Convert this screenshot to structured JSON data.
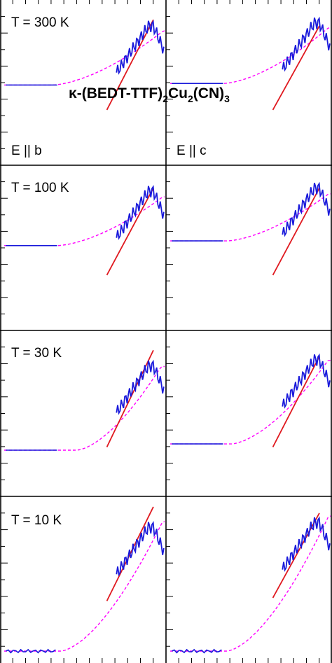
{
  "title": {
    "prefix": "κ-(BEDT-TTF)",
    "sub1": "2",
    "mid": "Cu",
    "sub2": "2",
    "suffix": "(CN)",
    "sub3": "3"
  },
  "columns": [
    {
      "label": "E || b"
    },
    {
      "label": "E || c"
    }
  ],
  "rows": [
    {
      "temperature_label": "T = 300 K"
    },
    {
      "temperature_label": "T = 100 K"
    },
    {
      "temperature_label": "T = 30 K"
    },
    {
      "temperature_label": "T = 10 K"
    }
  ],
  "colors": {
    "frame": "#000000",
    "measured": "#1a1adb",
    "fit_dashed": "#ff00ff",
    "linear_fit": "#e0191f"
  },
  "chart_data": {
    "type": "line",
    "layout": "4x2 panel grid (rows: temperature, columns: polarization)",
    "x": {
      "tick_labels_shown": false,
      "range": [
        0,
        1
      ]
    },
    "y": {
      "tick_labels_shown": false,
      "range": [
        0,
        1
      ]
    },
    "grid": false,
    "series": [
      {
        "name": "",
        "style": "solid blue",
        "description": "measured spectrum"
      },
      {
        "name": "",
        "style": "dashed magenta",
        "description": "model fit"
      },
      {
        "name": "",
        "style": "solid red",
        "description": "linear fit"
      }
    ],
    "panels": [
      {
        "row": 0,
        "col": 0,
        "flat": 0.48,
        "knee": 0.3,
        "end": 0.78,
        "red": [
          [
            0.64,
            0.16
          ],
          [
            0.93,
            0.9
          ]
        ]
      },
      {
        "row": 0,
        "col": 1,
        "flat": 0.49,
        "knee": 0.33,
        "end": 0.8,
        "red": [
          [
            0.64,
            0.16
          ],
          [
            0.93,
            0.86
          ]
        ]
      },
      {
        "row": 1,
        "col": 0,
        "flat": 0.51,
        "knee": 0.33,
        "end": 0.78,
        "red": [
          [
            0.64,
            0.16
          ],
          [
            0.93,
            0.88
          ]
        ]
      },
      {
        "row": 1,
        "col": 1,
        "flat": 0.54,
        "knee": 0.35,
        "end": 0.8,
        "red": [
          [
            0.64,
            0.16
          ],
          [
            0.93,
            0.88
          ]
        ]
      },
      {
        "row": 2,
        "col": 0,
        "flat": 0.26,
        "knee": 0.45,
        "end": 0.72,
        "red": [
          [
            0.64,
            0.16
          ],
          [
            0.93,
            0.9
          ]
        ]
      },
      {
        "row": 2,
        "col": 1,
        "flat": 0.3,
        "knee": 0.38,
        "end": 0.76,
        "red": [
          [
            0.64,
            0.16
          ],
          [
            0.93,
            0.86
          ]
        ]
      },
      {
        "row": 3,
        "col": 0,
        "flat": 0.04,
        "knee": 0.35,
        "end": 0.75,
        "red": [
          [
            0.64,
            0.24
          ],
          [
            0.93,
            0.96
          ]
        ]
      },
      {
        "row": 3,
        "col": 1,
        "flat": 0.04,
        "knee": 0.35,
        "end": 0.78,
        "red": [
          [
            0.64,
            0.26
          ],
          [
            0.93,
            0.92
          ]
        ]
      }
    ]
  }
}
